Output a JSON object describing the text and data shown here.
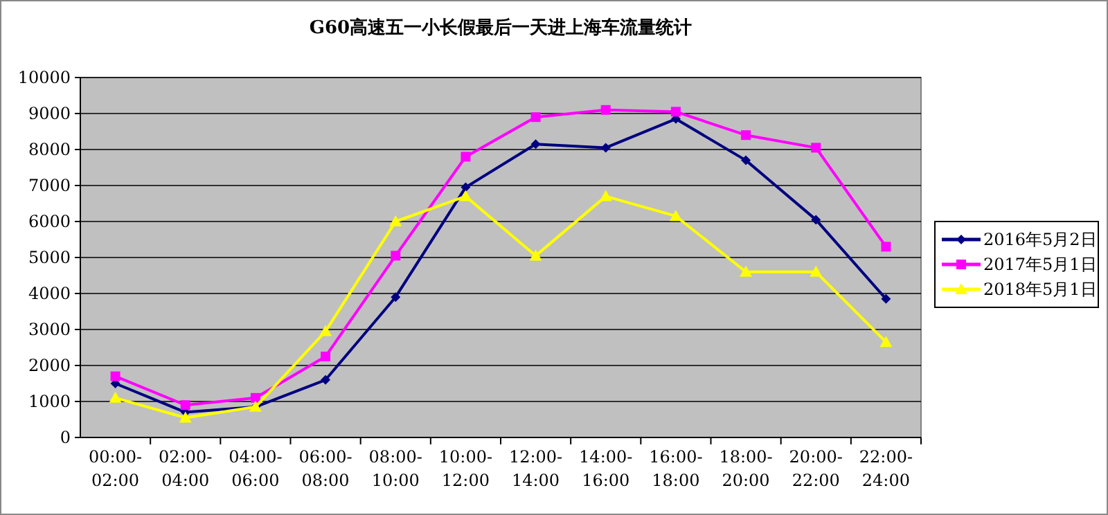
{
  "chart_data": {
    "type": "line",
    "title": "G60高速五一小长假最后一天进上海车流量统计",
    "categories": [
      "00:00-02:00",
      "02:00-04:00",
      "04:00-06:00",
      "06:00-08:00",
      "08:00-10:00",
      "10:00-12:00",
      "12:00-14:00",
      "14:00-16:00",
      "16:00-18:00",
      "18:00-20:00",
      "20:00-22:00",
      "22:00-24:00"
    ],
    "series": [
      {
        "name": "2016年5月2日",
        "color": "#000080",
        "marker": "diamond",
        "values": [
          1500,
          700,
          850,
          1600,
          3900,
          6950,
          8150,
          8050,
          8850,
          7700,
          6050,
          3850
        ]
      },
      {
        "name": "2017年5月1日",
        "color": "#ff00ff",
        "marker": "square",
        "values": [
          1700,
          900,
          1100,
          2250,
          5050,
          7800,
          8900,
          9100,
          9050,
          8400,
          8050,
          5300
        ]
      },
      {
        "name": "2018年5月1日",
        "color": "#ffff00",
        "marker": "triangle",
        "values": [
          1100,
          550,
          850,
          2950,
          6000,
          6700,
          5050,
          6700,
          6150,
          4600,
          4600,
          2650
        ]
      }
    ],
    "ylim": [
      0,
      10000
    ],
    "yticks": [
      0,
      1000,
      2000,
      3000,
      4000,
      5000,
      6000,
      7000,
      8000,
      9000,
      10000
    ],
    "grid": "y",
    "legend": "right"
  }
}
